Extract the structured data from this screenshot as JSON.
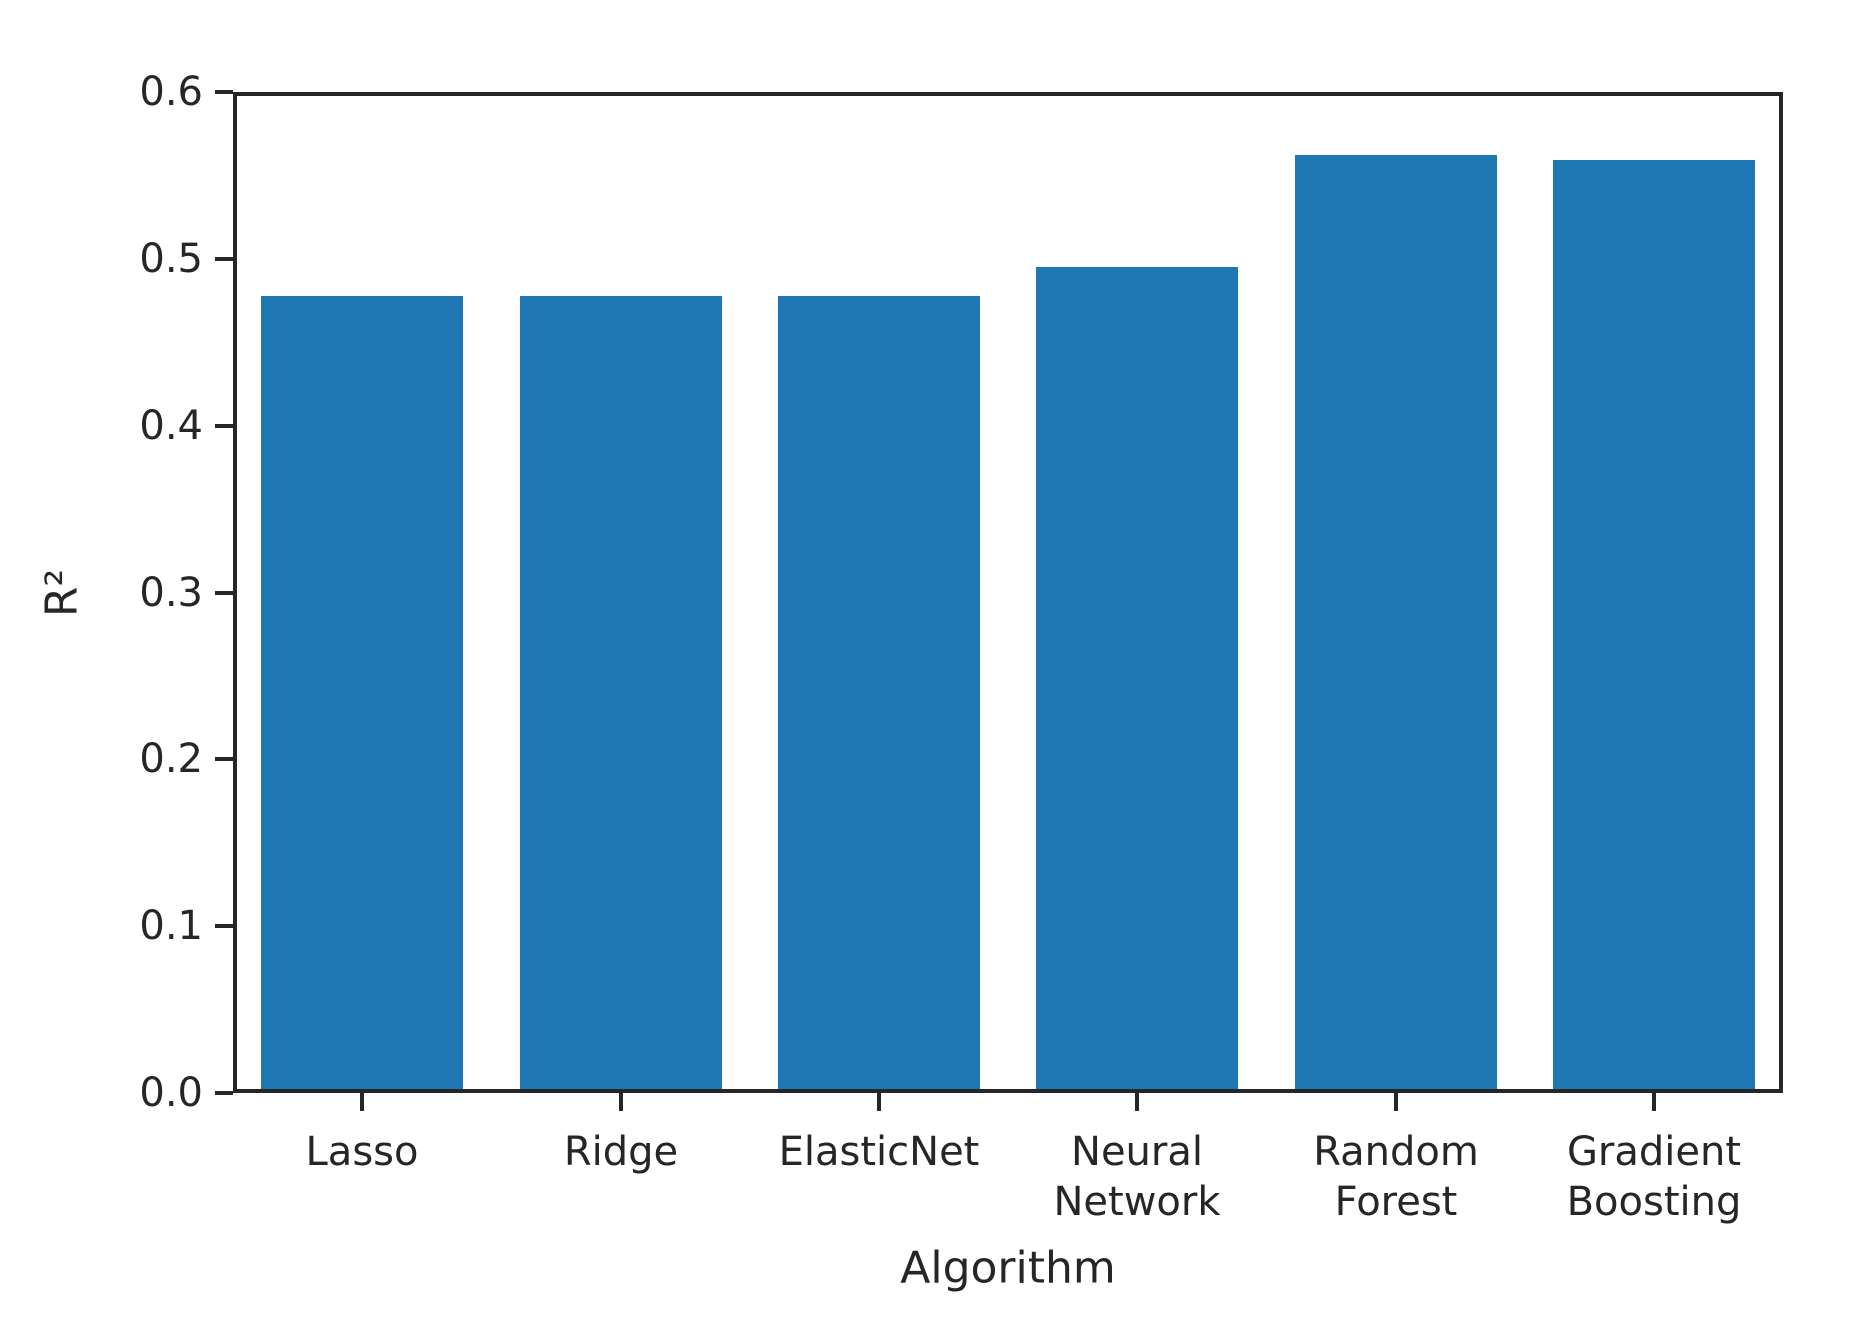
{
  "chart_data": {
    "type": "bar",
    "title": "",
    "xlabel": "Algorithm",
    "ylabel": "R²",
    "categories": [
      "Lasso",
      "Ridge",
      "ElasticNet",
      "Neural Network",
      "Random Forest",
      "Gradient Boosting"
    ],
    "category_lines": [
      [
        "Lasso"
      ],
      [
        "Ridge"
      ],
      [
        "ElasticNet"
      ],
      [
        "Neural",
        "Network"
      ],
      [
        "Random",
        "Forest"
      ],
      [
        "Gradient",
        "Boosting"
      ]
    ],
    "values": [
      0.478,
      0.478,
      0.478,
      0.495,
      0.562,
      0.559
    ],
    "ylim": [
      0.0,
      0.6
    ],
    "yticks": [
      "0.0",
      "0.1",
      "0.2",
      "0.3",
      "0.4",
      "0.5",
      "0.6"
    ],
    "grid": false,
    "legend": "none",
    "bar_color": "#1f77b4",
    "axis_color": "#262626",
    "text_color": "#262626",
    "background": "#ffffff"
  }
}
